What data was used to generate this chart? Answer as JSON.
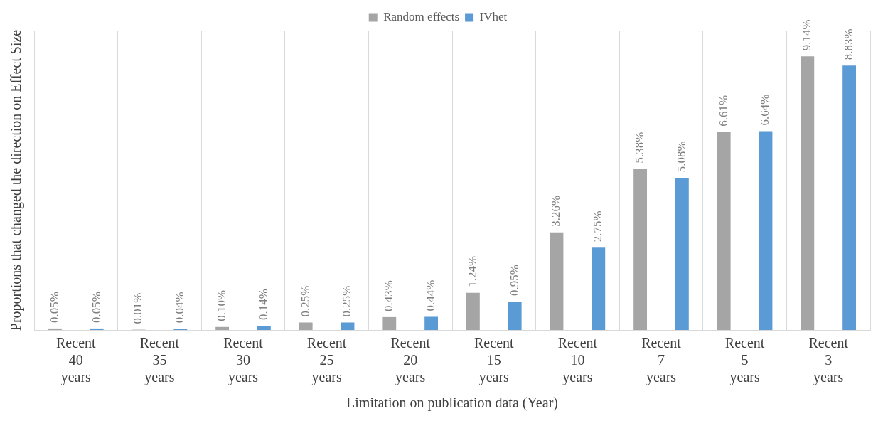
{
  "chart_data": {
    "type": "bar",
    "xlabel": "Limitation on publication data (Year)",
    "ylabel": "Proportions that changed the direction on Effect Size",
    "categories": [
      "Recent 40 years",
      "Recent 35 years",
      "Recent 30 years",
      "Recent 25 years",
      "Recent 20 years",
      "Recent 15 years",
      "Recent 10 years",
      "Recent 7 years",
      "Recent 5 years",
      "Recent 3 years"
    ],
    "series": [
      {
        "name": "Random effects",
        "color": "#a5a5a5",
        "values": [
          0.05,
          0.01,
          0.1,
          0.25,
          0.43,
          1.24,
          3.26,
          5.38,
          6.61,
          9.14
        ],
        "value_labels": [
          "0.05%",
          "0.01%",
          "0.10%",
          "0.25%",
          "0.43%",
          "1.24%",
          "3.26%",
          "5.38%",
          "6.61%",
          "9.14%"
        ]
      },
      {
        "name": "IVhet",
        "color": "#5b9bd5",
        "values": [
          0.05,
          0.04,
          0.14,
          0.25,
          0.44,
          0.95,
          2.75,
          5.08,
          6.64,
          8.83
        ],
        "value_labels": [
          "0.05%",
          "0.04%",
          "0.14%",
          "0.25%",
          "0.44%",
          "0.95%",
          "2.75%",
          "5.08%",
          "6.64%",
          "8.83%"
        ]
      }
    ],
    "grid": "x",
    "legend": "top"
  }
}
